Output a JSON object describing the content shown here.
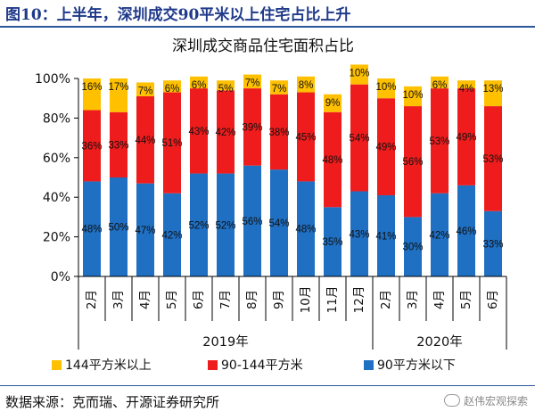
{
  "figure_title": "图10：上半年，深圳成交90平米以上住宅占比上升",
  "source_text": "数据来源：克而瑞、开源证券研究所",
  "watermark_text": "赵伟宏观探索",
  "colors": {
    "small": "#1f6fc2",
    "mid": "#ee1c1c",
    "large": "#ffc000",
    "title_blue": "#1f3a8a"
  },
  "chart_data": {
    "type": "bar",
    "stacked": true,
    "title": "深圳成交商品住宅面积占比",
    "categories": [
      "2月",
      "3月",
      "4月",
      "5月",
      "6月",
      "7月",
      "8月",
      "9月",
      "10月",
      "11月",
      "12月",
      "2月",
      "3月",
      "4月",
      "5月",
      "6月"
    ],
    "groups": [
      {
        "label": "2019年",
        "count": 11
      },
      {
        "label": "2020年",
        "count": 5
      }
    ],
    "y_ticks": [
      "0%",
      "20%",
      "40%",
      "60%",
      "80%",
      "100%"
    ],
    "ylim": [
      0,
      100
    ],
    "series": [
      {
        "name": "90平方米以下",
        "color": "#1f6fc2",
        "values": [
          48,
          50,
          47,
          42,
          52,
          52,
          56,
          54,
          48,
          35,
          43,
          41,
          30,
          42,
          46,
          33
        ],
        "labels": [
          "48%",
          "50%",
          "47%",
          "42%",
          "52%",
          "52%",
          "56%",
          "54%",
          "48%",
          "35%",
          "43%",
          "41%",
          "30%",
          "42%",
          "46%",
          "33%"
        ]
      },
      {
        "name": "90-144平方米",
        "color": "#ee1c1c",
        "values": [
          36,
          33,
          44,
          51,
          43,
          42,
          39,
          38,
          45,
          48,
          54,
          49,
          56,
          53,
          49,
          53
        ],
        "labels": [
          "36%",
          "33%",
          "44%",
          "51%",
          "43%",
          "42%",
          "39%",
          "38%",
          "45%",
          "48%",
          "54%",
          "49%",
          "56%",
          "53%",
          "49%",
          "53%"
        ]
      },
      {
        "name": "144平方米以上",
        "color": "#ffc000",
        "values": [
          16,
          17,
          7,
          6,
          6,
          5,
          7,
          7,
          8,
          9,
          10,
          10,
          10,
          6,
          4,
          13
        ],
        "labels": [
          "16%",
          "17%",
          "7%",
          "6%",
          "6%",
          "5%",
          "7%",
          "7%",
          "8%",
          "9%",
          "10%",
          "10%",
          "10%",
          "6%",
          "4%",
          "13%"
        ]
      }
    ],
    "legend_order": [
      2,
      1,
      0
    ]
  }
}
